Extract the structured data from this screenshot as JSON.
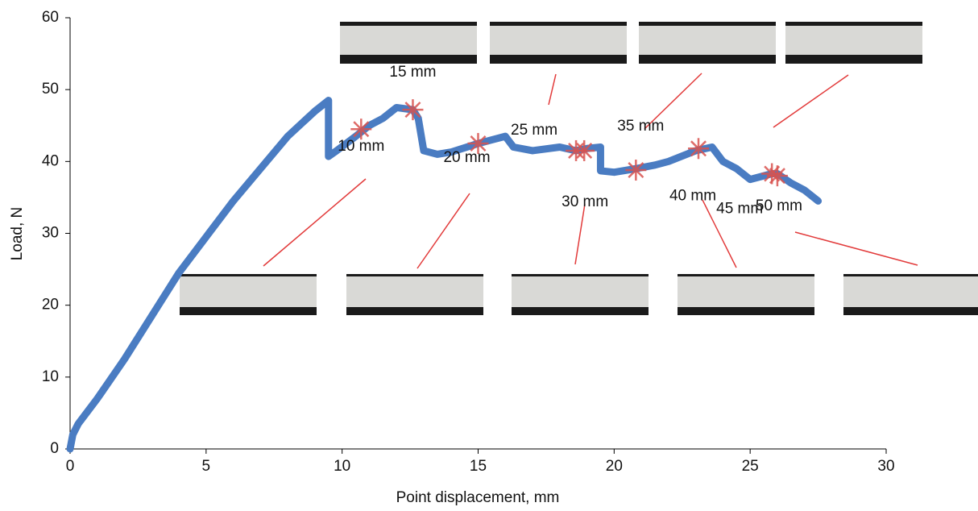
{
  "chart_data": {
    "type": "line",
    "x_label": "Point displacement, mm",
    "y_label": "Load, N",
    "x": [
      0,
      0.1,
      0.3,
      1,
      2,
      3,
      4,
      5,
      6,
      7,
      8,
      9,
      9.5,
      9.5,
      9.8,
      10.5,
      11,
      11.5,
      12,
      12.6,
      12.8,
      13,
      13.5,
      14,
      15,
      15.5,
      16,
      16.3,
      17,
      18,
      18.6,
      19,
      19.5,
      19.5,
      20,
      20.8,
      21.5,
      22,
      23,
      23.6,
      24,
      24.5,
      25,
      25.8,
      26,
      26.5,
      27,
      27.5
    ],
    "values": [
      0,
      2,
      3.5,
      7,
      12.5,
      18.5,
      24.5,
      29.5,
      34.5,
      39,
      43.5,
      47,
      48.5,
      40.7,
      41.5,
      43.5,
      45,
      46,
      47.5,
      47.2,
      46,
      41.5,
      41,
      41.3,
      42.5,
      43,
      43.5,
      42,
      41.5,
      42,
      41.5,
      41.8,
      42,
      38.7,
      38.5,
      39,
      39.5,
      40,
      41.5,
      42,
      40,
      39,
      37.5,
      38.3,
      38.3,
      37,
      36,
      34.5
    ],
    "color": "#4a7cc2",
    "markers": {
      "x": [
        10.7,
        12.6,
        15,
        18.6,
        18.9,
        20.8,
        23.1,
        25.8,
        26
      ],
      "values": [
        44.5,
        47.2,
        42.5,
        41.5,
        41.5,
        38.8,
        41.8,
        38.3,
        38
      ],
      "labels": [
        "10 mm",
        "15 mm",
        "20 mm",
        "25 mm",
        "30 mm",
        "35 mm",
        "40 mm",
        "45 mm",
        "50 mm"
      ],
      "color": "#d9534f"
    },
    "xlim": [
      0,
      30
    ],
    "xticks": [
      0,
      5,
      10,
      15,
      20,
      25,
      30
    ],
    "ylim": [
      0,
      60
    ],
    "yticks": [
      0,
      10,
      20,
      30,
      40,
      50,
      60
    ]
  }
}
